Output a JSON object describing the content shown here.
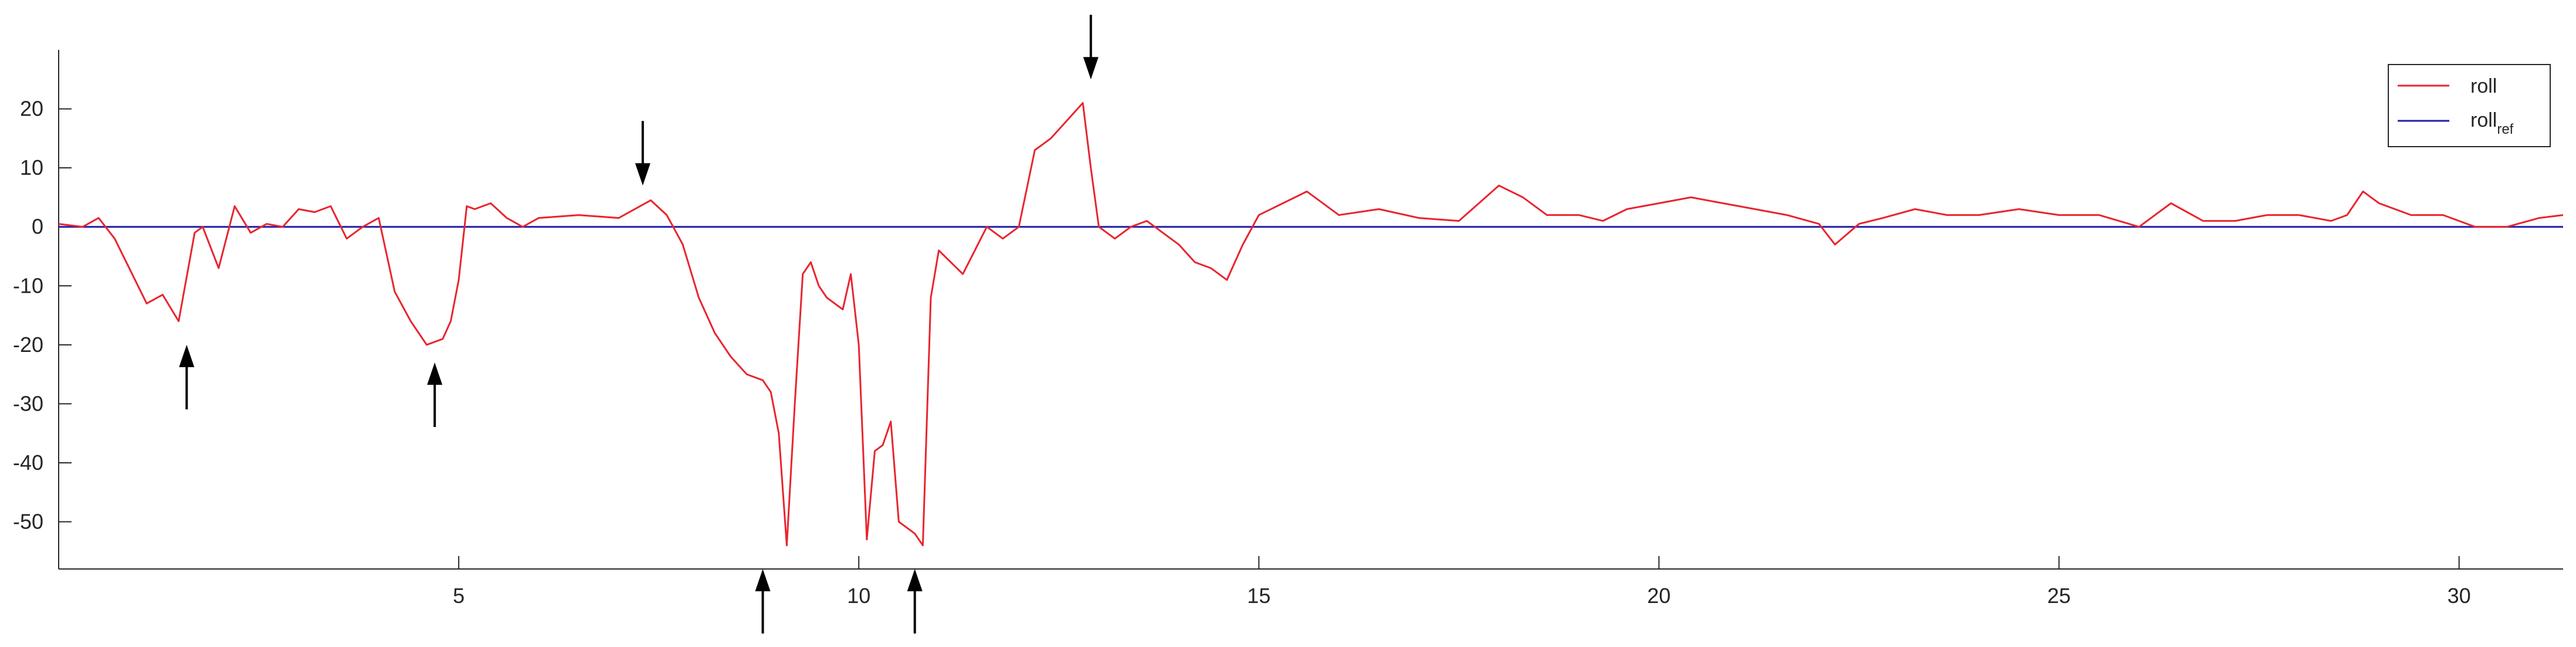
{
  "chart_data": {
    "type": "line",
    "title": "",
    "xlabel": "",
    "ylabel": "",
    "xlim": [
      0,
      31.3
    ],
    "ylim": [
      -58,
      30
    ],
    "xticks": [
      5,
      10,
      15,
      20,
      25,
      30
    ],
    "yticks": [
      20,
      10,
      0,
      -10,
      -20,
      -30,
      -40,
      -50
    ],
    "grid": false,
    "legend_position": "top-right",
    "series": [
      {
        "name": "roll",
        "color": "#e8252f",
        "x": [
          0,
          0.3,
          0.5,
          0.7,
          0.9,
          1.1,
          1.3,
          1.5,
          1.7,
          1.8,
          2.0,
          2.2,
          2.4,
          2.6,
          2.8,
          3.0,
          3.2,
          3.4,
          3.6,
          3.8,
          4.0,
          4.2,
          4.4,
          4.6,
          4.8,
          4.9,
          5.0,
          5.1,
          5.2,
          5.4,
          5.6,
          5.8,
          6.0,
          6.5,
          7.0,
          7.4,
          7.6,
          7.8,
          8.0,
          8.2,
          8.4,
          8.6,
          8.8,
          8.9,
          9.0,
          9.1,
          9.2,
          9.3,
          9.4,
          9.5,
          9.6,
          9.8,
          9.9,
          10.0,
          10.1,
          10.2,
          10.3,
          10.4,
          10.5,
          10.6,
          10.7,
          10.8,
          10.9,
          11.0,
          11.3,
          11.6,
          11.8,
          12.0,
          12.2,
          12.4,
          12.6,
          12.8,
          12.9,
          13.0,
          13.2,
          13.4,
          13.6,
          13.8,
          14.0,
          14.2,
          14.4,
          14.6,
          14.8,
          15.0,
          15.3,
          15.6,
          16.0,
          16.5,
          17.0,
          17.5,
          18.0,
          18.3,
          18.6,
          19.0,
          19.3,
          19.6,
          20.0,
          20.4,
          20.8,
          21.2,
          21.6,
          22.0,
          22.2,
          22.5,
          22.8,
          23.2,
          23.6,
          24.0,
          24.5,
          25.0,
          25.5,
          26.0,
          26.4,
          26.8,
          27.2,
          27.6,
          28.0,
          28.4,
          28.6,
          28.8,
          29.0,
          29.4,
          29.8,
          30.2,
          30.6,
          31.0,
          31.3
        ],
        "y": [
          0.5,
          0,
          1.5,
          -2,
          -7.5,
          -13,
          -11.5,
          -16,
          -1,
          0,
          -7,
          3.5,
          -1,
          0.5,
          0,
          3,
          2.5,
          3.5,
          -2,
          0,
          1.5,
          -11,
          -16,
          -20,
          -19,
          -16,
          -9,
          3.5,
          3,
          4,
          1.5,
          0,
          1.5,
          2,
          1.5,
          4.5,
          2,
          -3,
          -12,
          -18,
          -22,
          -25,
          -26,
          -28,
          -35,
          -54,
          -30,
          -8,
          -6,
          -10,
          -12,
          -14,
          -8,
          -20,
          -53,
          -38,
          -37,
          -33,
          -50,
          -51,
          -52,
          -54,
          -12,
          -4,
          -8,
          0,
          -2,
          0,
          13,
          15,
          18,
          21,
          10,
          0,
          -2,
          0,
          1,
          -1,
          -3,
          -6,
          -7,
          -9,
          -3,
          2,
          4,
          6,
          2,
          3,
          1.5,
          1,
          7,
          5,
          2,
          2,
          1,
          3,
          4,
          5,
          4,
          3,
          2,
          0.5,
          -3,
          0.5,
          1.5,
          3,
          2,
          2,
          3,
          2,
          2,
          0,
          4,
          1,
          1,
          2,
          2,
          1,
          2,
          6,
          4,
          2,
          2,
          0,
          0,
          1.5,
          2
        ]
      },
      {
        "name": "roll_ref",
        "label_main": "roll",
        "label_sub": "ref",
        "color": "#1f1fa8",
        "x": [
          0,
          31.3
        ],
        "y": [
          0,
          0
        ]
      }
    ],
    "annotations": [
      {
        "type": "arrow-up",
        "x": 1.6,
        "y": -20
      },
      {
        "type": "arrow-up",
        "x": 4.7,
        "y": -23
      },
      {
        "type": "arrow-down",
        "x": 7.3,
        "y": 7
      },
      {
        "type": "arrow-up",
        "x": 8.8,
        "y": -58
      },
      {
        "type": "arrow-up",
        "x": 10.7,
        "y": -58
      },
      {
        "type": "arrow-down",
        "x": 12.9,
        "y": 25
      }
    ]
  }
}
